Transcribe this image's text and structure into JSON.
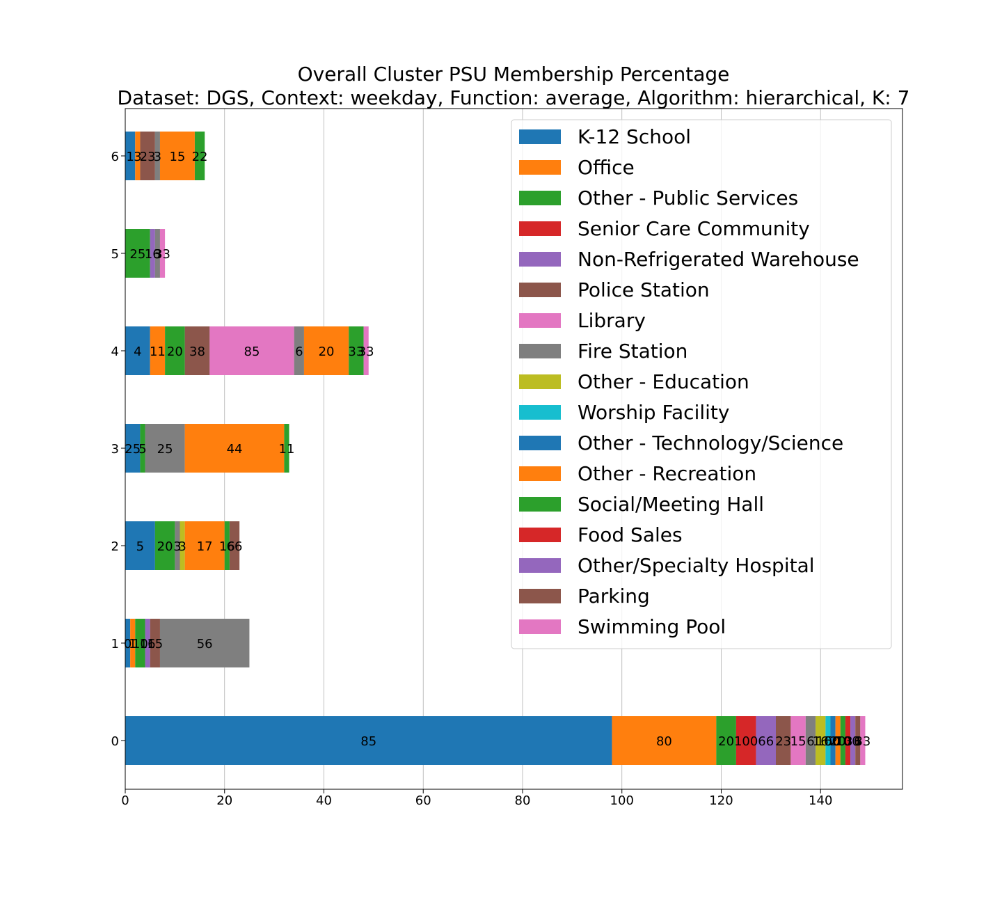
{
  "chart_data": {
    "type": "bar",
    "orientation": "horizontal",
    "stacked": true,
    "title": "Overall Cluster  PSU Membership Percentage",
    "subtitle": "Dataset: DGS, Context: weekday, Function: average, Algorithm: hierarchical, K: 7",
    "xlabel": "",
    "ylabel": "",
    "xlim": [
      0,
      156.5
    ],
    "xticks": [
      0,
      20,
      40,
      60,
      80,
      100,
      120,
      140
    ],
    "grid": "vertical",
    "legend_position": "top-right",
    "categories": [
      "0",
      "1",
      "2",
      "3",
      "4",
      "5",
      "6"
    ],
    "series": [
      {
        "name": "K-12 School",
        "color": "#1f77b4",
        "values": [
          98,
          1,
          6,
          3,
          5,
          0,
          2
        ],
        "labels": [
          "85",
          "0",
          "5",
          "25",
          "4",
          "",
          "1"
        ]
      },
      {
        "name": "Office",
        "color": "#ff7f0e",
        "values": [
          21,
          1,
          0,
          0,
          3,
          0,
          1
        ],
        "labels": [
          "80",
          "1",
          "",
          "",
          "11",
          "",
          "3"
        ]
      },
      {
        "name": "Other - Public Services",
        "color": "#2ca02c",
        "values": [
          4,
          2,
          4,
          1,
          4,
          5,
          0
        ],
        "labels": [
          "20",
          "10",
          "20",
          "5",
          "20",
          "25",
          ""
        ]
      },
      {
        "name": "Senior Care Community",
        "color": "#d62728",
        "values": [
          4,
          0,
          0,
          0,
          0,
          0,
          0
        ],
        "labels": [
          "100",
          "",
          "",
          "",
          "",
          "",
          ""
        ]
      },
      {
        "name": "Non-Refrigerated Warehouse",
        "color": "#9467bd",
        "values": [
          4,
          1,
          0,
          0,
          0,
          1,
          0
        ],
        "labels": [
          "66",
          "16",
          "",
          "",
          "",
          "16",
          ""
        ]
      },
      {
        "name": "Police Station",
        "color": "#8c564b",
        "values": [
          3,
          2,
          0,
          0,
          5,
          0,
          3
        ],
        "labels": [
          "23",
          "15",
          "",
          "",
          "38",
          "",
          "23"
        ]
      },
      {
        "name": "Library",
        "color": "#e377c2",
        "values": [
          3,
          0,
          0,
          0,
          17,
          0,
          0
        ],
        "labels": [
          "15",
          "",
          "",
          "",
          "85",
          "",
          ""
        ]
      },
      {
        "name": "Fire Station",
        "color": "#7f7f7f",
        "values": [
          2,
          18,
          1,
          8,
          2,
          1,
          1
        ],
        "labels": [
          "6",
          "56",
          "3",
          "25",
          "6",
          "3",
          "3"
        ]
      },
      {
        "name": "Other - Education",
        "color": "#bcbd22",
        "values": [
          2,
          0,
          1,
          0,
          0,
          0,
          0
        ],
        "labels": [
          "16",
          "",
          "3",
          "",
          "",
          "",
          ""
        ]
      },
      {
        "name": "Worship Facility",
        "color": "#17becf",
        "values": [
          1,
          0,
          0,
          0,
          0,
          0,
          0
        ],
        "labels": [
          "100",
          "",
          "",
          "",
          "",
          "",
          ""
        ]
      },
      {
        "name": "Other - Technology/Science",
        "color": "#1f77b4",
        "values": [
          1,
          0,
          0,
          0,
          0,
          0,
          0
        ],
        "labels": [
          "50",
          "",
          "",
          "",
          "",
          "",
          ""
        ]
      },
      {
        "name": "Other - Recreation",
        "color": "#ff7f0e",
        "values": [
          1,
          0,
          8,
          20,
          9,
          0,
          7
        ],
        "labels": [
          "20",
          "",
          "17",
          "44",
          "20",
          "",
          "15"
        ]
      },
      {
        "name": "Social/Meeting Hall",
        "color": "#2ca02c",
        "values": [
          1,
          0,
          1,
          1,
          3,
          0,
          2
        ],
        "labels": [
          "10",
          "",
          "16",
          "11",
          "33",
          "",
          "22"
        ]
      },
      {
        "name": "Food Sales",
        "color": "#d62728",
        "values": [
          1,
          0,
          0,
          0,
          0,
          0,
          0
        ],
        "labels": [
          "100",
          "",
          "",
          "",
          "",
          "",
          ""
        ]
      },
      {
        "name": "Other/Specialty Hospital",
        "color": "#9467bd",
        "values": [
          1,
          0,
          0,
          0,
          0,
          0,
          0
        ],
        "labels": [
          "33",
          "",
          "",
          "",
          "",
          "",
          ""
        ]
      },
      {
        "name": "Parking",
        "color": "#8c564b",
        "values": [
          1,
          0,
          2,
          0,
          0,
          0,
          0
        ],
        "labels": [
          "6",
          "",
          "66",
          "",
          "",
          "",
          ""
        ]
      },
      {
        "name": "Swimming Pool",
        "color": "#e377c2",
        "values": [
          1,
          0,
          0,
          0,
          1,
          1,
          0
        ],
        "labels": [
          "33",
          "",
          "",
          "",
          "33",
          "33",
          ""
        ]
      }
    ]
  }
}
